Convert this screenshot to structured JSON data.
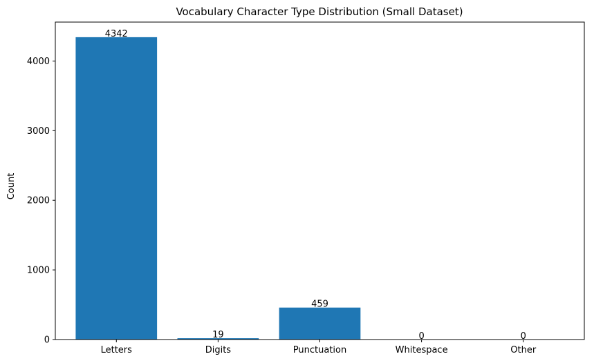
{
  "chart_data": {
    "type": "bar",
    "title": "Vocabulary Character Type Distribution (Small Dataset)",
    "xlabel": "",
    "ylabel": "Count",
    "categories": [
      "Letters",
      "Digits",
      "Punctuation",
      "Whitespace",
      "Other"
    ],
    "values": [
      4342,
      19,
      459,
      0,
      0
    ],
    "data_labels": [
      "4342",
      "19",
      "459",
      "0",
      "0"
    ],
    "ylim": [
      0,
      4559
    ],
    "yticks": [
      0,
      1000,
      2000,
      3000,
      4000
    ],
    "ytick_labels": [
      "0",
      "1000",
      "2000",
      "3000",
      "4000"
    ],
    "grid": false,
    "legend": "none",
    "bar_color": "#1f77b4"
  }
}
